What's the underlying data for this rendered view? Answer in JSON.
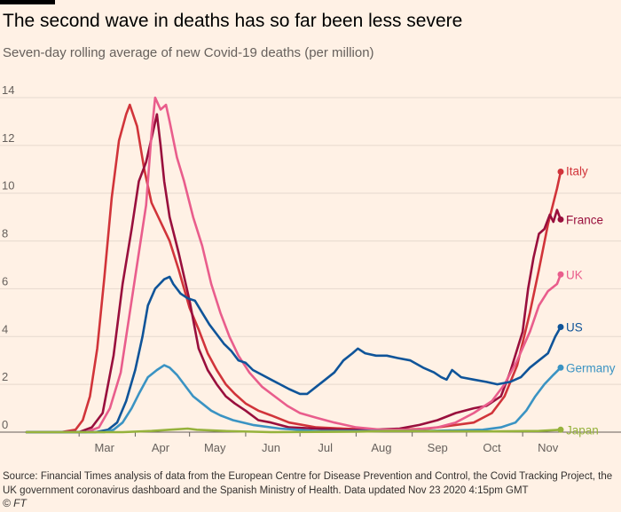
{
  "title": "The second wave in deaths has so far been less severe",
  "subtitle": "Seven-day rolling average of new Covid-19 deaths (per million)",
  "source": "Source: Financial Times analysis of data from the European Centre for Disease Prevention and Control, the Covid Tracking Project, the UK government coronavirus dashboard and the Spanish Ministry of Health. Data updated Nov 23 2020 4:15pm GMT",
  "credit": "© FT",
  "chart_data": {
    "type": "line",
    "title": "The second wave in deaths has so far been less severe",
    "subtitle": "Seven-day rolling average of new Covid-19 deaths (per million)",
    "x_unit": "date (2020)",
    "x_range": [
      "2020-02-01",
      "2020-11-22"
    ],
    "ylim": [
      0,
      14
    ],
    "y_ticks": [
      0,
      2,
      4,
      6,
      8,
      10,
      12,
      14
    ],
    "x_ticks": [
      "Mar",
      "Apr",
      "May",
      "Jun",
      "Jul",
      "Aug",
      "Sep",
      "Oct",
      "Nov"
    ],
    "x_tick_dates": [
      "2020-03-15",
      "2020-04-15",
      "2020-05-15",
      "2020-06-15",
      "2020-07-15",
      "2020-08-15",
      "2020-09-15",
      "2020-10-15",
      "2020-11-15"
    ],
    "grid": "horizontal",
    "legend": "direct labels at line ends",
    "series": [
      {
        "name": "Italy",
        "color": "#d1343a",
        "points": [
          [
            "2020-02-01",
            0
          ],
          [
            "2020-02-20",
            0
          ],
          [
            "2020-02-28",
            0.1
          ],
          [
            "2020-03-03",
            0.5
          ],
          [
            "2020-03-07",
            1.5
          ],
          [
            "2020-03-11",
            3.5
          ],
          [
            "2020-03-15",
            6.5
          ],
          [
            "2020-03-19",
            9.8
          ],
          [
            "2020-03-23",
            12.2
          ],
          [
            "2020-03-27",
            13.3
          ],
          [
            "2020-03-29",
            13.7
          ],
          [
            "2020-04-02",
            12.8
          ],
          [
            "2020-04-06",
            11.0
          ],
          [
            "2020-04-10",
            9.6
          ],
          [
            "2020-04-15",
            8.8
          ],
          [
            "2020-04-20",
            8.0
          ],
          [
            "2020-04-25",
            6.8
          ],
          [
            "2020-05-01",
            5.2
          ],
          [
            "2020-05-06",
            4.3
          ],
          [
            "2020-05-11",
            3.3
          ],
          [
            "2020-05-16",
            2.6
          ],
          [
            "2020-05-21",
            2.0
          ],
          [
            "2020-05-26",
            1.6
          ],
          [
            "2020-06-01",
            1.2
          ],
          [
            "2020-06-08",
            0.9
          ],
          [
            "2020-06-15",
            0.7
          ],
          [
            "2020-06-25",
            0.4
          ],
          [
            "2020-07-10",
            0.2
          ],
          [
            "2020-07-25",
            0.15
          ],
          [
            "2020-08-10",
            0.1
          ],
          [
            "2020-08-25",
            0.1
          ],
          [
            "2020-09-10",
            0.15
          ],
          [
            "2020-09-25",
            0.3
          ],
          [
            "2020-10-05",
            0.4
          ],
          [
            "2020-10-15",
            0.8
          ],
          [
            "2020-10-22",
            1.5
          ],
          [
            "2020-10-29",
            2.8
          ],
          [
            "2020-11-05",
            5.0
          ],
          [
            "2020-11-10",
            6.8
          ],
          [
            "2020-11-15",
            8.7
          ],
          [
            "2020-11-20",
            10.2
          ],
          [
            "2020-11-22",
            10.9
          ]
        ]
      },
      {
        "name": "France",
        "color": "#990f3d",
        "points": [
          [
            "2020-02-01",
            0
          ],
          [
            "2020-03-01",
            0
          ],
          [
            "2020-03-08",
            0.2
          ],
          [
            "2020-03-14",
            0.8
          ],
          [
            "2020-03-20",
            3.2
          ],
          [
            "2020-03-25",
            6.2
          ],
          [
            "2020-03-30",
            8.5
          ],
          [
            "2020-04-03",
            10.5
          ],
          [
            "2020-04-07",
            11.3
          ],
          [
            "2020-04-10",
            12.3
          ],
          [
            "2020-04-13",
            13.3
          ],
          [
            "2020-04-15",
            12.0
          ],
          [
            "2020-04-17",
            10.5
          ],
          [
            "2020-04-20",
            9.0
          ],
          [
            "2020-04-25",
            7.5
          ],
          [
            "2020-05-01",
            5.5
          ],
          [
            "2020-05-06",
            3.5
          ],
          [
            "2020-05-11",
            2.6
          ],
          [
            "2020-05-16",
            2.0
          ],
          [
            "2020-05-21",
            1.5
          ],
          [
            "2020-05-26",
            1.2
          ],
          [
            "2020-06-01",
            0.9
          ],
          [
            "2020-06-08",
            0.5
          ],
          [
            "2020-06-15",
            0.4
          ],
          [
            "2020-06-25",
            0.2
          ],
          [
            "2020-07-10",
            0.15
          ],
          [
            "2020-07-25",
            0.1
          ],
          [
            "2020-08-10",
            0.1
          ],
          [
            "2020-08-25",
            0.15
          ],
          [
            "2020-09-05",
            0.3
          ],
          [
            "2020-09-15",
            0.5
          ],
          [
            "2020-09-25",
            0.8
          ],
          [
            "2020-10-05",
            1.0
          ],
          [
            "2020-10-12",
            1.1
          ],
          [
            "2020-10-20",
            1.5
          ],
          [
            "2020-10-25",
            2.5
          ],
          [
            "2020-11-01",
            4.2
          ],
          [
            "2020-11-04",
            6.0
          ],
          [
            "2020-11-07",
            7.3
          ],
          [
            "2020-11-10",
            8.3
          ],
          [
            "2020-11-13",
            8.5
          ],
          [
            "2020-11-16",
            9.1
          ],
          [
            "2020-11-18",
            8.8
          ],
          [
            "2020-11-20",
            9.3
          ],
          [
            "2020-11-22",
            8.9
          ]
        ]
      },
      {
        "name": "UK",
        "color": "#e95d8c",
        "points": [
          [
            "2020-02-01",
            0
          ],
          [
            "2020-03-05",
            0
          ],
          [
            "2020-03-12",
            0.2
          ],
          [
            "2020-03-18",
            1.0
          ],
          [
            "2020-03-24",
            2.5
          ],
          [
            "2020-03-29",
            5.0
          ],
          [
            "2020-04-03",
            7.5
          ],
          [
            "2020-04-07",
            9.5
          ],
          [
            "2020-04-10",
            12.5
          ],
          [
            "2020-04-12",
            14.0
          ],
          [
            "2020-04-15",
            13.5
          ],
          [
            "2020-04-18",
            13.7
          ],
          [
            "2020-04-20",
            13.0
          ],
          [
            "2020-04-24",
            11.5
          ],
          [
            "2020-04-28",
            10.5
          ],
          [
            "2020-05-03",
            9.0
          ],
          [
            "2020-05-08",
            7.8
          ],
          [
            "2020-05-13",
            6.2
          ],
          [
            "2020-05-18",
            5.0
          ],
          [
            "2020-05-23",
            4.0
          ],
          [
            "2020-05-28",
            3.2
          ],
          [
            "2020-06-03",
            2.5
          ],
          [
            "2020-06-10",
            1.9
          ],
          [
            "2020-06-17",
            1.5
          ],
          [
            "2020-06-24",
            1.1
          ],
          [
            "2020-07-01",
            0.8
          ],
          [
            "2020-07-10",
            0.6
          ],
          [
            "2020-07-20",
            0.4
          ],
          [
            "2020-08-01",
            0.2
          ],
          [
            "2020-08-15",
            0.1
          ],
          [
            "2020-09-01",
            0.1
          ],
          [
            "2020-09-15",
            0.2
          ],
          [
            "2020-09-25",
            0.4
          ],
          [
            "2020-10-05",
            0.8
          ],
          [
            "2020-10-15",
            1.3
          ],
          [
            "2020-10-22",
            2.0
          ],
          [
            "2020-10-29",
            3.0
          ],
          [
            "2020-11-05",
            4.2
          ],
          [
            "2020-11-10",
            5.3
          ],
          [
            "2020-11-15",
            5.9
          ],
          [
            "2020-11-20",
            6.2
          ],
          [
            "2020-11-22",
            6.6
          ]
        ]
      },
      {
        "name": "US",
        "color": "#0f5499",
        "points": [
          [
            "2020-02-01",
            0
          ],
          [
            "2020-03-10",
            0
          ],
          [
            "2020-03-17",
            0.1
          ],
          [
            "2020-03-22",
            0.4
          ],
          [
            "2020-03-27",
            1.3
          ],
          [
            "2020-04-01",
            2.6
          ],
          [
            "2020-04-05",
            4.0
          ],
          [
            "2020-04-08",
            5.3
          ],
          [
            "2020-04-12",
            6.0
          ],
          [
            "2020-04-17",
            6.4
          ],
          [
            "2020-04-20",
            6.5
          ],
          [
            "2020-04-22",
            6.2
          ],
          [
            "2020-04-26",
            5.8
          ],
          [
            "2020-04-30",
            5.6
          ],
          [
            "2020-05-04",
            5.5
          ],
          [
            "2020-05-08",
            5.0
          ],
          [
            "2020-05-12",
            4.5
          ],
          [
            "2020-05-16",
            4.1
          ],
          [
            "2020-05-20",
            3.7
          ],
          [
            "2020-05-24",
            3.4
          ],
          [
            "2020-05-28",
            3.0
          ],
          [
            "2020-06-01",
            2.9
          ],
          [
            "2020-06-05",
            2.6
          ],
          [
            "2020-06-10",
            2.4
          ],
          [
            "2020-06-15",
            2.2
          ],
          [
            "2020-06-20",
            2.0
          ],
          [
            "2020-06-25",
            1.8
          ],
          [
            "2020-07-01",
            1.6
          ],
          [
            "2020-07-05",
            1.6
          ],
          [
            "2020-07-10",
            1.9
          ],
          [
            "2020-07-15",
            2.2
          ],
          [
            "2020-07-20",
            2.5
          ],
          [
            "2020-07-25",
            3.0
          ],
          [
            "2020-07-30",
            3.3
          ],
          [
            "2020-08-02",
            3.5
          ],
          [
            "2020-08-06",
            3.3
          ],
          [
            "2020-08-12",
            3.2
          ],
          [
            "2020-08-18",
            3.2
          ],
          [
            "2020-08-24",
            3.1
          ],
          [
            "2020-08-31",
            3.0
          ],
          [
            "2020-09-07",
            2.7
          ],
          [
            "2020-09-13",
            2.5
          ],
          [
            "2020-09-17",
            2.3
          ],
          [
            "2020-09-20",
            2.2
          ],
          [
            "2020-09-23",
            2.6
          ],
          [
            "2020-09-28",
            2.3
          ],
          [
            "2020-10-05",
            2.2
          ],
          [
            "2020-10-12",
            2.1
          ],
          [
            "2020-10-18",
            2.0
          ],
          [
            "2020-10-25",
            2.1
          ],
          [
            "2020-10-31",
            2.3
          ],
          [
            "2020-11-05",
            2.7
          ],
          [
            "2020-11-10",
            3.0
          ],
          [
            "2020-11-15",
            3.3
          ],
          [
            "2020-11-19",
            4.0
          ],
          [
            "2020-11-22",
            4.4
          ]
        ]
      },
      {
        "name": "Germany",
        "color": "#3a93c3",
        "points": [
          [
            "2020-02-01",
            0
          ],
          [
            "2020-03-15",
            0
          ],
          [
            "2020-03-20",
            0.1
          ],
          [
            "2020-03-25",
            0.4
          ],
          [
            "2020-03-30",
            1.0
          ],
          [
            "2020-04-03",
            1.6
          ],
          [
            "2020-04-08",
            2.3
          ],
          [
            "2020-04-13",
            2.6
          ],
          [
            "2020-04-17",
            2.8
          ],
          [
            "2020-04-20",
            2.7
          ],
          [
            "2020-04-24",
            2.4
          ],
          [
            "2020-04-28",
            2.0
          ],
          [
            "2020-05-03",
            1.5
          ],
          [
            "2020-05-08",
            1.2
          ],
          [
            "2020-05-13",
            0.9
          ],
          [
            "2020-05-18",
            0.7
          ],
          [
            "2020-05-25",
            0.5
          ],
          [
            "2020-06-05",
            0.3
          ],
          [
            "2020-06-20",
            0.15
          ],
          [
            "2020-07-10",
            0.05
          ],
          [
            "2020-08-10",
            0.05
          ],
          [
            "2020-09-10",
            0.05
          ],
          [
            "2020-10-10",
            0.1
          ],
          [
            "2020-10-20",
            0.2
          ],
          [
            "2020-10-28",
            0.4
          ],
          [
            "2020-11-03",
            0.9
          ],
          [
            "2020-11-08",
            1.5
          ],
          [
            "2020-11-13",
            2.0
          ],
          [
            "2020-11-18",
            2.4
          ],
          [
            "2020-11-22",
            2.7
          ]
        ]
      },
      {
        "name": "Japan",
        "color": "#96b23c",
        "points": [
          [
            "2020-02-01",
            0
          ],
          [
            "2020-03-25",
            0
          ],
          [
            "2020-04-10",
            0.05
          ],
          [
            "2020-04-20",
            0.1
          ],
          [
            "2020-04-30",
            0.15
          ],
          [
            "2020-05-05",
            0.1
          ],
          [
            "2020-05-20",
            0.05
          ],
          [
            "2020-06-15",
            0
          ],
          [
            "2020-08-01",
            0.02
          ],
          [
            "2020-08-20",
            0.05
          ],
          [
            "2020-09-10",
            0.04
          ],
          [
            "2020-10-15",
            0.03
          ],
          [
            "2020-11-10",
            0.05
          ],
          [
            "2020-11-22",
            0.1
          ]
        ]
      }
    ]
  }
}
